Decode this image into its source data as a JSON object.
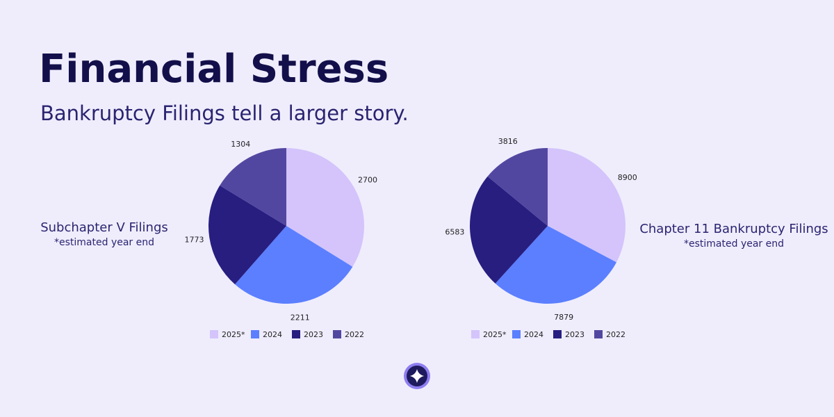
{
  "header": {
    "title": "Financial Stress",
    "subtitle": "Bankruptcy Filings tell a larger story."
  },
  "chart_data": [
    {
      "type": "pie",
      "title": "Subchapter V Filings",
      "subtitle": "*estimated year end",
      "categories": [
        "2025*",
        "2024",
        "2023",
        "2022"
      ],
      "values": [
        2700,
        2211,
        1773,
        1304
      ],
      "colors": [
        "#d4c4fb",
        "#5b7fff",
        "#271e80",
        "#5247a0"
      ]
    },
    {
      "type": "pie",
      "title": "Chapter 11 Bankruptcy Filings",
      "subtitle": "*estimated year end",
      "categories": [
        "2025*",
        "2024",
        "2023",
        "2022"
      ],
      "values": [
        8900,
        7879,
        6583,
        3816
      ],
      "colors": [
        "#d4c4fb",
        "#5b7fff",
        "#271e80",
        "#5247a0"
      ]
    }
  ]
}
